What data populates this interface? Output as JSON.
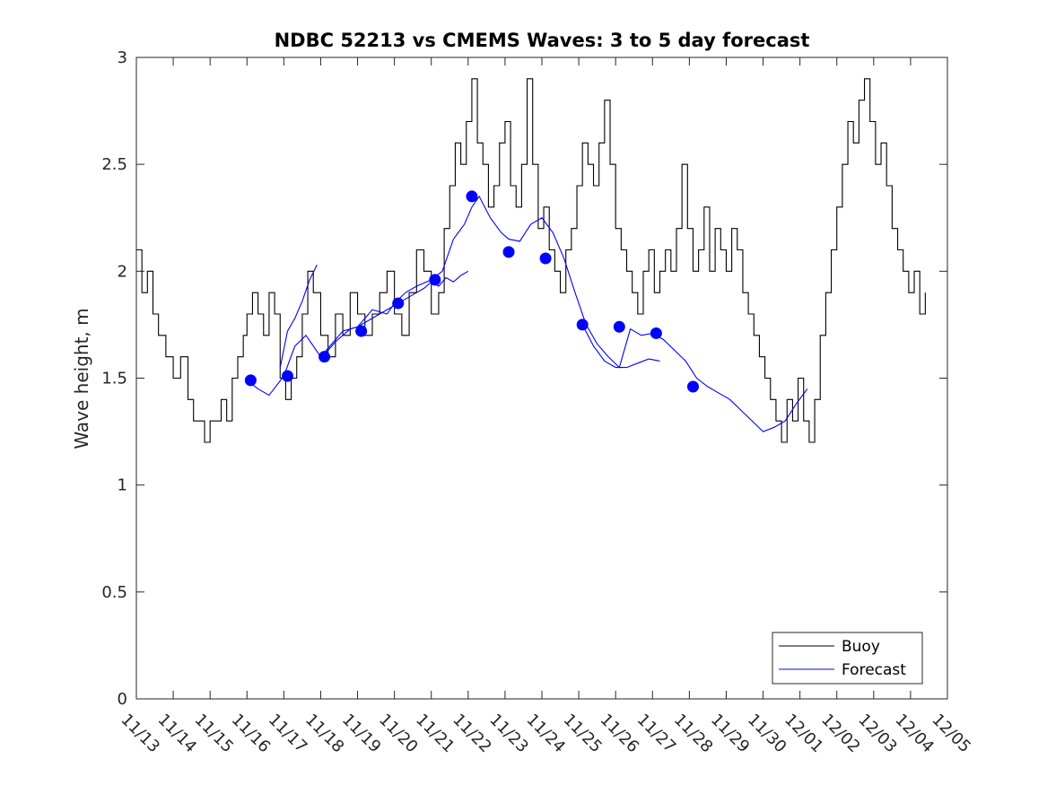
{
  "chart_data": {
    "type": "line",
    "title": "NDBC 52213 vs CMEMS Waves: 3 to 5 day forecast",
    "xlabel": "",
    "ylabel": "Wave height, m",
    "ylim": [
      0,
      3
    ],
    "xlim": [
      0,
      22
    ],
    "x_tick_labels": [
      "11/13",
      "11/14",
      "11/15",
      "11/16",
      "11/17",
      "11/18",
      "11/19",
      "11/20",
      "11/21",
      "11/22",
      "11/23",
      "11/24",
      "11/25",
      "11/26",
      "11/27",
      "11/28",
      "11/29",
      "11/30",
      "12/01",
      "12/02",
      "12/03",
      "12/04",
      "12/05"
    ],
    "y_ticks": [
      0,
      0.5,
      1,
      1.5,
      2,
      2.5,
      3
    ],
    "y_tick_labels": [
      "0",
      "0.5",
      "1",
      "1.5",
      "2",
      "2.5",
      "3"
    ],
    "legend": {
      "position": "bottom-right",
      "entries": [
        "Buoy",
        "Forecast"
      ]
    },
    "colors": {
      "buoy": "#000000",
      "forecast": "#0000ff",
      "markers": "#0000ff"
    },
    "series": [
      {
        "name": "Buoy",
        "x": [
          0,
          0.15,
          0.3,
          0.45,
          0.6,
          0.8,
          1.0,
          1.2,
          1.4,
          1.55,
          1.7,
          1.85,
          2.0,
          2.15,
          2.3,
          2.45,
          2.6,
          2.75,
          2.9,
          3.0,
          3.15,
          3.3,
          3.45,
          3.6,
          3.75,
          3.9,
          4.05,
          4.2,
          4.35,
          4.5,
          4.65,
          4.8,
          5.0,
          5.2,
          5.4,
          5.6,
          5.8,
          6.0,
          6.2,
          6.4,
          6.6,
          6.8,
          7.0,
          7.2,
          7.4,
          7.6,
          7.8,
          8.0,
          8.2,
          8.35,
          8.5,
          8.65,
          8.8,
          8.95,
          9.1,
          9.25,
          9.4,
          9.55,
          9.7,
          9.85,
          10.0,
          10.15,
          10.3,
          10.45,
          10.6,
          10.75,
          10.9,
          11.05,
          11.2,
          11.35,
          11.5,
          11.65,
          11.8,
          11.95,
          12.1,
          12.25,
          12.4,
          12.55,
          12.7,
          12.85,
          13.0,
          13.15,
          13.3,
          13.45,
          13.6,
          13.75,
          13.9,
          14.05,
          14.2,
          14.35,
          14.5,
          14.65,
          14.8,
          14.95,
          15.1,
          15.25,
          15.4,
          15.55,
          15.7,
          15.85,
          16.0,
          16.15,
          16.3,
          16.45,
          16.6,
          16.75,
          16.9,
          17.05,
          17.2,
          17.35,
          17.5,
          17.65,
          17.8,
          17.95,
          18.1,
          18.25,
          18.4,
          18.55,
          18.7,
          18.85,
          19.0,
          19.15,
          19.3,
          19.45,
          19.6,
          19.75,
          19.9,
          20.05,
          20.2,
          20.35,
          20.5,
          20.65,
          20.8,
          20.95,
          21.1,
          21.25,
          21.4
        ],
        "values": [
          2.1,
          1.9,
          2.0,
          1.8,
          1.7,
          1.6,
          1.5,
          1.6,
          1.4,
          1.3,
          1.3,
          1.2,
          1.3,
          1.3,
          1.4,
          1.3,
          1.5,
          1.6,
          1.7,
          1.8,
          1.9,
          1.8,
          1.7,
          1.9,
          1.8,
          1.5,
          1.4,
          1.5,
          1.6,
          1.8,
          2.0,
          1.9,
          1.7,
          1.6,
          1.8,
          1.7,
          1.9,
          1.8,
          1.7,
          1.8,
          1.9,
          2.0,
          1.8,
          1.7,
          1.9,
          2.1,
          2.0,
          1.8,
          1.9,
          2.2,
          2.4,
          2.6,
          2.5,
          2.7,
          2.9,
          2.6,
          2.5,
          2.3,
          2.4,
          2.6,
          2.7,
          2.4,
          2.3,
          2.5,
          2.9,
          2.5,
          2.2,
          2.3,
          2.1,
          2.0,
          1.9,
          2.1,
          2.2,
          2.4,
          2.6,
          2.5,
          2.4,
          2.6,
          2.8,
          2.5,
          2.2,
          2.1,
          2.0,
          1.9,
          1.8,
          2.0,
          2.1,
          1.9,
          2.0,
          2.1,
          2.0,
          2.2,
          2.5,
          2.2,
          2.0,
          2.1,
          2.3,
          2.0,
          2.2,
          2.1,
          2.0,
          2.2,
          2.1,
          1.9,
          1.8,
          1.7,
          1.6,
          1.5,
          1.4,
          1.3,
          1.2,
          1.4,
          1.3,
          1.5,
          1.3,
          1.2,
          1.4,
          1.7,
          1.9,
          2.1,
          2.3,
          2.5,
          2.7,
          2.6,
          2.8,
          2.9,
          2.7,
          2.5,
          2.6,
          2.4,
          2.2,
          2.1,
          2.0,
          1.9,
          2.0,
          1.8,
          1.9
        ],
        "color": "#000000"
      },
      {
        "name": "Forecast",
        "x": [
          3.0,
          3.3,
          3.6,
          4.0,
          4.3,
          4.6,
          5.0,
          5.3,
          5.6,
          6.0,
          6.4,
          6.8,
          7.0,
          7.3,
          7.6,
          8.0,
          8.3,
          8.6,
          8.9,
          9.1,
          9.3,
          9.6,
          9.9,
          10.1,
          10.4,
          10.7,
          11.0,
          11.3,
          11.6,
          11.9,
          12.2,
          12.5,
          12.8,
          13.1,
          13.4,
          13.7,
          14.0,
          14.3,
          14.6,
          14.9,
          15.2,
          15.5,
          15.8,
          16.1,
          16.4,
          16.7,
          17.0,
          17.3,
          17.6,
          17.9,
          18.2
        ],
        "values": [
          1.49,
          1.45,
          1.42,
          1.51,
          1.65,
          1.7,
          1.6,
          1.66,
          1.72,
          1.74,
          1.82,
          1.8,
          1.85,
          1.9,
          1.93,
          1.96,
          2.0,
          2.15,
          2.22,
          2.3,
          2.35,
          2.25,
          2.18,
          2.15,
          2.14,
          2.22,
          2.25,
          2.18,
          2.06,
          1.9,
          1.75,
          1.66,
          1.6,
          1.55,
          1.73,
          1.7,
          1.71,
          1.68,
          1.63,
          1.58,
          1.5,
          1.46,
          1.43,
          1.4,
          1.35,
          1.3,
          1.25,
          1.27,
          1.3,
          1.38,
          1.45
        ],
        "color": "#0000ff"
      }
    ],
    "markers": {
      "name": "Forecast initial points",
      "x": [
        3.1,
        4.1,
        5.1,
        6.1,
        7.1,
        8.1,
        9.1,
        10.1,
        11.1,
        12.1,
        13.1,
        14.1,
        15.1
      ],
      "values": [
        1.49,
        1.51,
        1.6,
        1.72,
        1.85,
        1.96,
        2.35,
        2.09,
        2.06,
        1.75,
        1.74,
        1.71,
        1.46
      ]
    },
    "extra_forecast_segments": [
      {
        "x": [
          5.0,
          5.2,
          5.4,
          5.6,
          5.8,
          6.0,
          6.2,
          6.4,
          6.6,
          6.8,
          7.0,
          7.2,
          7.4,
          7.6,
          7.8,
          8.0,
          8.2,
          8.4,
          8.6,
          8.8,
          9.0
        ],
        "values": [
          1.6,
          1.63,
          1.67,
          1.7,
          1.73,
          1.74,
          1.76,
          1.78,
          1.8,
          1.82,
          1.84,
          1.86,
          1.88,
          1.9,
          1.92,
          1.95,
          1.93,
          1.97,
          1.95,
          1.98,
          2.0
        ]
      },
      {
        "x": [
          3.9,
          4.1,
          4.3,
          4.5,
          4.7,
          4.9
        ],
        "values": [
          1.55,
          1.72,
          1.78,
          1.86,
          1.96,
          2.03
        ]
      },
      {
        "x": [
          12.1,
          12.4,
          12.7,
          13.0,
          13.3,
          13.6,
          13.9,
          14.2
        ],
        "values": [
          1.75,
          1.65,
          1.58,
          1.55,
          1.55,
          1.57,
          1.59,
          1.58
        ]
      }
    ]
  }
}
